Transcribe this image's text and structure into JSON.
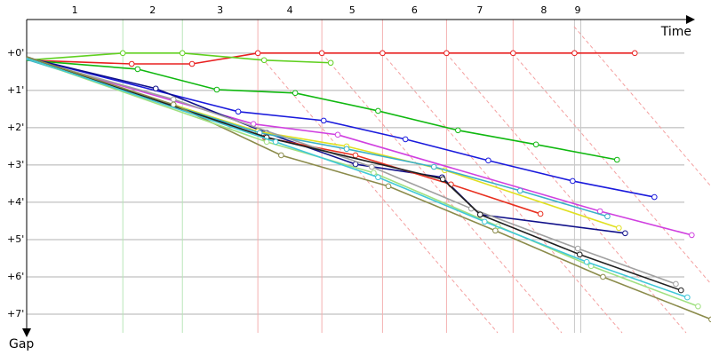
{
  "chart_data": {
    "type": "line",
    "x_label": "Time",
    "y_label": "Gap",
    "xlim": [
      0,
      18.5
    ],
    "ylim": [
      -0.9,
      7.5
    ],
    "y_inverted": true,
    "yticks": [
      {
        "value": 0,
        "label": "+0'"
      },
      {
        "value": 1,
        "label": "+1'"
      },
      {
        "value": 2,
        "label": "+2'"
      },
      {
        "value": 3,
        "label": "+3'"
      },
      {
        "value": 4,
        "label": "+4'"
      },
      {
        "value": 5,
        "label": "+5'"
      },
      {
        "value": 6,
        "label": "+6'"
      },
      {
        "value": 7,
        "label": "+7'"
      }
    ],
    "grid": true,
    "laps": [
      "1",
      "2",
      "3",
      "4",
      "5",
      "6",
      "7",
      "8",
      "9"
    ],
    "lap_lines": [
      2.6,
      4.21,
      6.25,
      7.98,
      9.62,
      11.35,
      13.15,
      14.81,
      14.98
    ],
    "lap_line_colors": [
      "#b8e6b8",
      "#b8e6b8",
      "#f4b0b0",
      "#f4b0b0",
      "#f4b0b0",
      "#f4b0b0",
      "#f4b0b0",
      "#c8c8c8",
      "#c8c8c8"
    ],
    "series": [
      {
        "color": "#e82020",
        "x": [
          0,
          2.84,
          4.47,
          6.25,
          7.98,
          9.62,
          11.35,
          13.15,
          14.81,
          16.44
        ],
        "values": [
          0.19,
          0.29,
          0.29,
          0,
          0,
          0,
          0,
          0,
          0,
          0
        ]
      },
      {
        "color": "#60d020",
        "x": [
          0,
          2.6,
          4.21,
          6.42,
          8.22
        ],
        "values": [
          0.19,
          0,
          0,
          0.19,
          0.26
        ]
      },
      {
        "color": "#10b810",
        "x": [
          0,
          3.0,
          5.14,
          7.26,
          9.5,
          11.66,
          13.77,
          15.96
        ],
        "values": [
          0.19,
          0.43,
          0.98,
          1.07,
          1.55,
          2.07,
          2.45,
          2.86
        ]
      },
      {
        "color": "#1a1adc",
        "x": [
          0,
          5.72,
          8.03,
          10.24,
          12.48,
          14.76,
          16.97
        ],
        "values": [
          0.12,
          1.57,
          1.81,
          2.31,
          2.88,
          3.43,
          3.86
        ]
      },
      {
        "color": "#d040e0",
        "x": [
          0,
          6.13,
          8.41,
          15.5,
          17.98
        ],
        "values": [
          0.14,
          1.9,
          2.19,
          4.24,
          4.88
        ]
      },
      {
        "color": "#10108a",
        "x": [
          0,
          3.49,
          6.49,
          8.89,
          11.23,
          12.26,
          16.18
        ],
        "values": [
          0.12,
          0.95,
          2.14,
          2.98,
          3.33,
          4.33,
          4.83
        ]
      },
      {
        "color": "#e83020",
        "x": [
          0,
          6.44,
          8.89,
          11.47,
          13.89
        ],
        "values": [
          0.14,
          2.26,
          2.74,
          3.52,
          4.31
        ]
      },
      {
        "color": "#e0e020",
        "x": [
          0,
          6.25,
          8.65,
          11.3,
          16.01
        ],
        "values": [
          0.14,
          2.1,
          2.5,
          3.14,
          4.69
        ]
      },
      {
        "color": "#3ab0c8",
        "x": [
          0,
          6.3,
          8.65,
          11.01,
          13.34,
          15.7
        ],
        "values": [
          0.17,
          2.14,
          2.57,
          3.05,
          3.69,
          4.38
        ]
      },
      {
        "color": "#a0a0a0",
        "x": [
          0,
          3.97,
          9.33,
          12.02,
          14.9,
          17.55
        ],
        "values": [
          0.14,
          1.24,
          3.05,
          4.17,
          5.24,
          6.19
        ]
      },
      {
        "color": "#202020",
        "x": [
          0,
          6.49,
          11.25,
          12.26,
          14.95,
          17.69
        ],
        "values": [
          0.1,
          2.26,
          3.38,
          4.33,
          5.4,
          6.36
        ]
      },
      {
        "color": "#8b8b4b",
        "x": [
          0,
          3.97,
          6.88,
          9.78,
          12.67,
          15.58,
          18.51
        ],
        "values": [
          0.1,
          1.38,
          2.74,
          3.57,
          4.76,
          6,
          7.14
        ]
      },
      {
        "color": "#a0e080",
        "x": [
          0,
          6.49,
          9.38,
          12.74,
          15.26,
          18.15
        ],
        "values": [
          0.14,
          2.38,
          3.21,
          4.64,
          5.71,
          6.79
        ]
      },
      {
        "color": "#40c8d8",
        "x": [
          0,
          6.73,
          9.5,
          12.38,
          15.14,
          17.86
        ],
        "values": [
          0.14,
          2.38,
          3.33,
          4.52,
          5.6,
          6.55
        ]
      }
    ]
  }
}
